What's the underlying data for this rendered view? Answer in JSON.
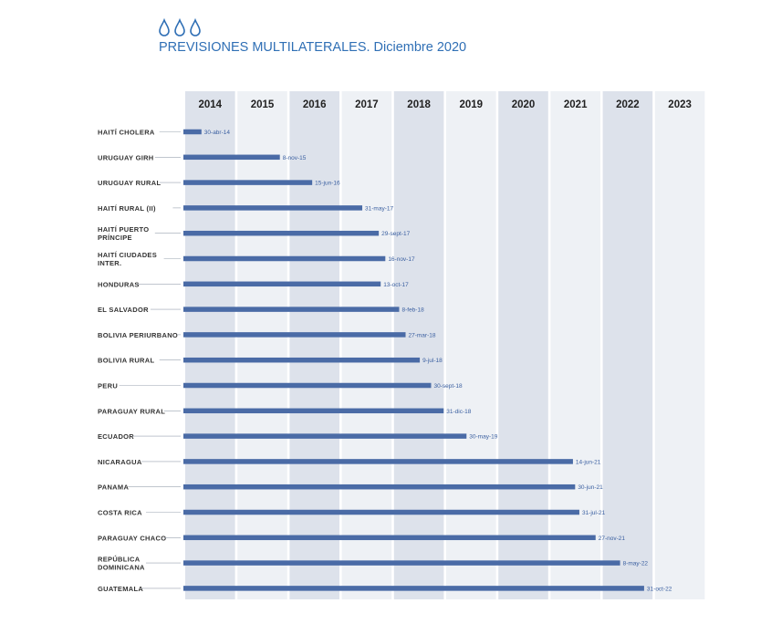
{
  "header": {
    "title": "PREVISIONES MULTILATERALES. Diciembre 2020",
    "icon": "water-drops-icon",
    "accent": "#2f6fb5"
  },
  "chart_data": {
    "type": "bar",
    "orientation": "horizontal",
    "title": "PREVISIONES MULTILATERALES. Diciembre 2020",
    "x_axis": {
      "type": "date",
      "ticks": [
        "2014",
        "2015",
        "2016",
        "2017",
        "2018",
        "2019",
        "2020",
        "2021",
        "2022",
        "2023"
      ],
      "range": [
        "2014-01-01",
        "2023-12-31"
      ]
    },
    "bar_color": "#4a6ba6",
    "column_colors": {
      "dark": "#dde2eb",
      "light": "#eef1f5"
    },
    "categories": [
      {
        "name": [
          "HAITÍ CHOLERA"
        ],
        "date": "2014-04-30",
        "label": "30-abr-14"
      },
      {
        "name": [
          "URUGUAY GIRH"
        ],
        "date": "2015-11-08",
        "label": "8-nov-15"
      },
      {
        "name": [
          "URUGUAY RURAL"
        ],
        "date": "2016-06-15",
        "label": "15-jun-16"
      },
      {
        "name": [
          "HAITÍ RURAL (II)"
        ],
        "date": "2017-05-31",
        "label": "31-may-17"
      },
      {
        "name": [
          "HAITÍ PUERTO",
          "PRÍNCIPE"
        ],
        "date": "2017-09-29",
        "label": "29-sept-17"
      },
      {
        "name": [
          "HAITÍ CIUDADES",
          "INTER."
        ],
        "date": "2017-11-16",
        "label": "16-nov-17"
      },
      {
        "name": [
          "HONDURAS"
        ],
        "date": "2017-10-13",
        "label": "13-oct-17"
      },
      {
        "name": [
          "EL SALVADOR"
        ],
        "date": "2018-02-08",
        "label": "8-feb-18"
      },
      {
        "name": [
          "BOLIVIA PERIURBANO"
        ],
        "date": "2018-03-27",
        "label": "27-mar-18"
      },
      {
        "name": [
          "BOLIVIA RURAL"
        ],
        "date": "2018-07-09",
        "label": "9-jul-18"
      },
      {
        "name": [
          "PERU"
        ],
        "date": "2018-09-30",
        "label": "30-sept-18"
      },
      {
        "name": [
          "PARAGUAY RURAL"
        ],
        "date": "2018-12-31",
        "label": "31-dic-18"
      },
      {
        "name": [
          "ECUADOR"
        ],
        "date": "2019-05-30",
        "label": "30-may-19"
      },
      {
        "name": [
          "NICARAGUA"
        ],
        "date": "2021-06-14",
        "label": "14-jun-21"
      },
      {
        "name": [
          "PANAMA"
        ],
        "date": "2021-06-30",
        "label": "30-jun-21"
      },
      {
        "name": [
          "COSTA RICA"
        ],
        "date": "2021-07-31",
        "label": "31-jul-21"
      },
      {
        "name": [
          "PARAGUAY CHACO"
        ],
        "date": "2021-11-27",
        "label": "27-nov-21"
      },
      {
        "name": [
          "REPÚBLICA",
          "DOMINICANA"
        ],
        "date": "2022-05-08",
        "label": "8-may-22"
      },
      {
        "name": [
          "GUATEMALA"
        ],
        "date": "2022-10-31",
        "label": "31-oct-22"
      }
    ]
  }
}
